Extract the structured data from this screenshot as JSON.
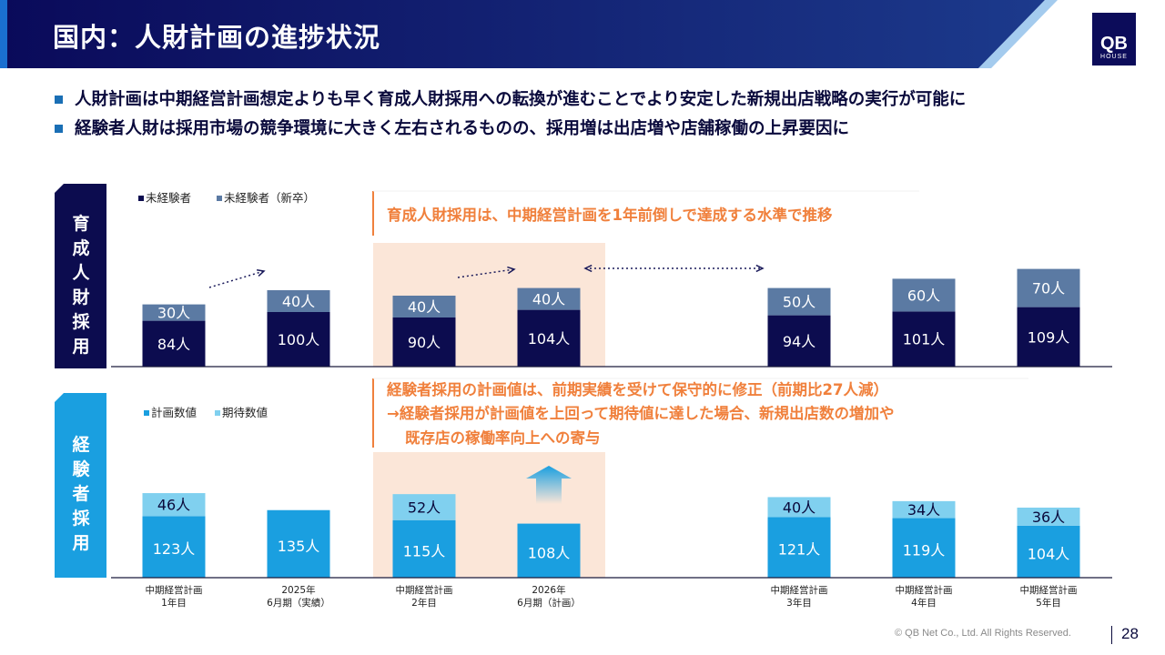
{
  "header": {
    "title": "国内：人財計画の進捗状況"
  },
  "logo": {
    "line1": "QB",
    "line2": "HOUSE"
  },
  "bullets": [
    "人財計画は中期経営計画想定よりも早く育成人財採用への転換が進むことでより安定した新規出店戦略の実行が可能に",
    "経験者人財は採用市場の競争環境に大きく左右されるものの、採用増は出店増や店舗稼働の上昇要因に"
  ],
  "footer": {
    "copyright": "© QB Net Co., Ltd. All Rights Reserved.",
    "page": "28"
  },
  "colors": {
    "navy": "#0c0c4f",
    "steel": "#5b7aa3",
    "blue": "#1a9fe0",
    "lightblue": "#80d0ef",
    "orange": "#f0803c",
    "highlight": "#fbe6d8",
    "sidebar_navy": "#0c0c4f",
    "sidebar_blue": "#1a9fe0"
  },
  "chart_data": [
    {
      "type": "bar",
      "stacked": true,
      "title": "育成人財採用",
      "legend": [
        "未経験者",
        "未経験者（新卒）"
      ],
      "annotation": "育成人財採用は、中期経営計画を1年前倒しで達成する水準で推移",
      "categories": [
        "中期経営計画\n1年目",
        "2025年\n6月期(実績)",
        "中期経営計画\n2年目",
        "2026年\n6月期(計画)",
        "中期経営計画\n3年目",
        "中期経営計画\n4年目",
        "中期経営計画\n5年目"
      ],
      "series": [
        {
          "name": "未経験者",
          "values": [
            84,
            100,
            90,
            104,
            94,
            101,
            109
          ],
          "labels": [
            "84人",
            "100人",
            "90人",
            "104人",
            "94人",
            "101人",
            "109人"
          ]
        },
        {
          "name": "未経験者（新卒）",
          "values": [
            30,
            40,
            40,
            40,
            50,
            60,
            70
          ],
          "labels": [
            "30人",
            "40人",
            "40人",
            "40人",
            "50人",
            "60人",
            "70人"
          ]
        }
      ]
    },
    {
      "type": "bar",
      "stacked": true,
      "title": "経験者採用",
      "legend": [
        "計画数値",
        "期待数値"
      ],
      "annotation": [
        "経験者採用の計画値は、前期実績を受けて保守的に修正（前期比27人減）",
        "→経験者採用が計画値を上回って期待値に達した場合、新規出店数の増加や",
        "既存店の稼働率向上への寄与"
      ],
      "categories": [
        "中期経営計画\n1年目",
        "2025年\n6月期(実績)",
        "中期経営計画\n2年目",
        "2026年\n6月期(計画)",
        "中期経営計画\n3年目",
        "中期経営計画\n4年目",
        "中期経営計画\n5年目"
      ],
      "series": [
        {
          "name": "計画数値",
          "values": [
            123,
            135,
            115,
            108,
            121,
            119,
            104
          ],
          "labels": [
            "123人",
            "135人",
            "115人",
            "108人",
            "121人",
            "119人",
            "104人"
          ]
        },
        {
          "name": "期待数値",
          "values": [
            46,
            null,
            52,
            null,
            40,
            34,
            36
          ],
          "labels": [
            "46人",
            "",
            "52人",
            "",
            "40人",
            "34人",
            "36人"
          ]
        }
      ]
    }
  ],
  "x_labels": [
    [
      "中期経営計画",
      "1年目"
    ],
    [
      "2025年",
      "6月期（実績）"
    ],
    [
      "中期経営計画",
      "2年目"
    ],
    [
      "2026年",
      "6月期（計画）"
    ],
    [
      "中期経営計画",
      "3年目"
    ],
    [
      "中期経営計画",
      "4年目"
    ],
    [
      "中期経営計画",
      "5年目"
    ]
  ]
}
